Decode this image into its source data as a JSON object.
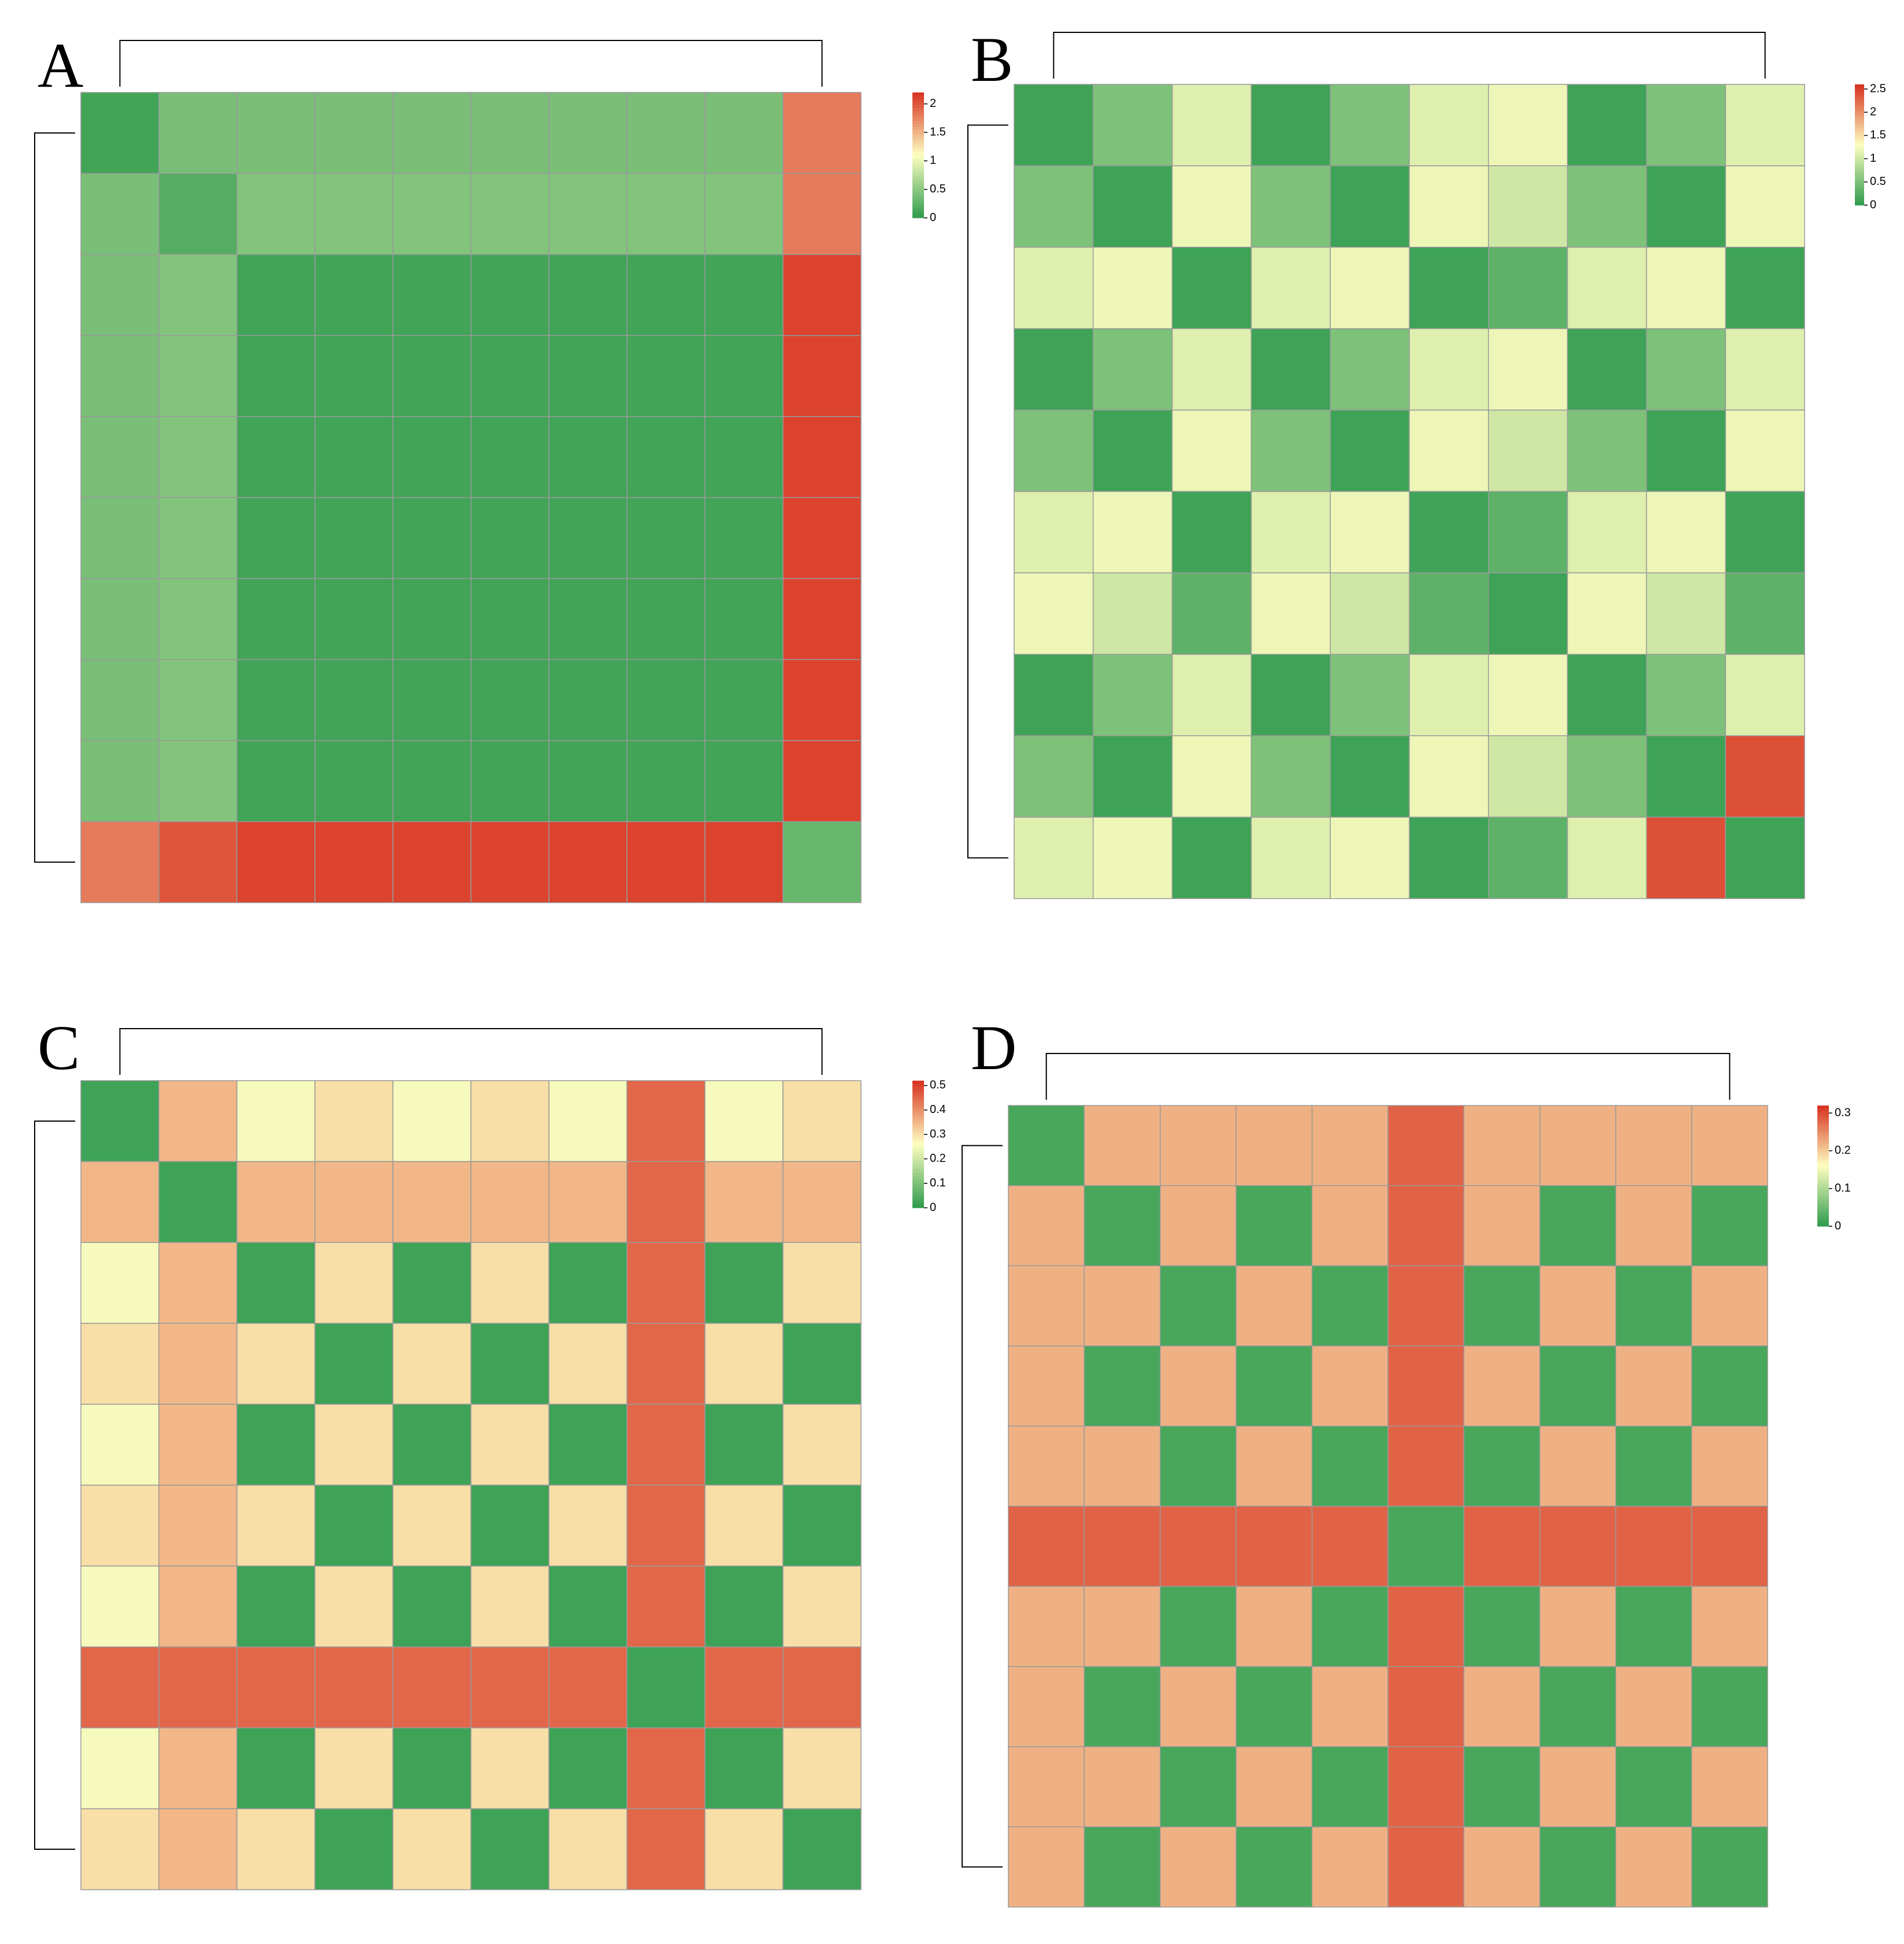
{
  "chart_data": [
    {
      "type": "heatmap",
      "panel": "A",
      "colors": [
        "#2e9b4d",
        "#fefec0",
        "#d7301f"
      ],
      "zlim": [
        0,
        2.2
      ],
      "zticks": [
        0,
        0.5,
        1,
        1.5,
        2
      ],
      "values": [
        [
          0.1,
          0.4,
          0.4,
          0.4,
          0.4,
          0.4,
          0.4,
          0.4,
          0.4,
          1.8
        ],
        [
          0.4,
          0.2,
          0.45,
          0.45,
          0.45,
          0.45,
          0.45,
          0.45,
          0.45,
          1.8
        ],
        [
          0.4,
          0.45,
          0.1,
          0.1,
          0.1,
          0.1,
          0.1,
          0.1,
          0.1,
          2.1
        ],
        [
          0.4,
          0.45,
          0.1,
          0.1,
          0.1,
          0.1,
          0.1,
          0.1,
          0.1,
          2.1
        ],
        [
          0.4,
          0.45,
          0.1,
          0.1,
          0.1,
          0.1,
          0.1,
          0.1,
          0.1,
          2.1
        ],
        [
          0.4,
          0.45,
          0.1,
          0.1,
          0.1,
          0.1,
          0.1,
          0.1,
          0.1,
          2.1
        ],
        [
          0.4,
          0.45,
          0.1,
          0.1,
          0.1,
          0.1,
          0.1,
          0.1,
          0.1,
          2.1
        ],
        [
          0.4,
          0.45,
          0.1,
          0.1,
          0.1,
          0.1,
          0.1,
          0.1,
          0.1,
          2.1
        ],
        [
          0.4,
          0.45,
          0.1,
          0.1,
          0.1,
          0.1,
          0.1,
          0.1,
          0.1,
          2.1
        ],
        [
          1.8,
          2,
          2.1,
          2.1,
          2.1,
          2.1,
          2.1,
          2.1,
          2.1,
          0.3
        ]
      ]
    },
    {
      "type": "heatmap",
      "panel": "B",
      "colors": [
        "#2e9b4d",
        "#fefec0",
        "#d7301f"
      ],
      "zlim": [
        0,
        2.6
      ],
      "zticks": [
        0,
        0.5,
        1,
        1.5,
        2,
        2.5
      ],
      "values": [
        [
          0.1,
          0.5,
          1.1,
          0.1,
          0.5,
          1.1,
          1.2,
          0.1,
          0.5,
          1.1
        ],
        [
          0.5,
          0.1,
          1.2,
          0.5,
          0.1,
          1.2,
          1.0,
          0.5,
          0.1,
          1.2
        ],
        [
          1.1,
          1.2,
          0.1,
          1.1,
          1.2,
          0.1,
          0.3,
          1.1,
          1.2,
          0.1
        ],
        [
          0.1,
          0.5,
          1.1,
          0.1,
          0.5,
          1.1,
          1.2,
          0.1,
          0.5,
          1.1
        ],
        [
          0.5,
          0.1,
          1.2,
          0.5,
          0.1,
          1.2,
          1.0,
          0.5,
          0.1,
          1.2
        ],
        [
          1.1,
          1.2,
          0.1,
          1.1,
          1.2,
          0.1,
          0.3,
          1.1,
          1.2,
          0.1
        ],
        [
          1.2,
          1.0,
          0.3,
          1.2,
          1.0,
          0.3,
          0.1,
          1.2,
          1.0,
          0.3
        ],
        [
          0.1,
          0.5,
          1.1,
          0.1,
          0.5,
          1.1,
          1.2,
          0.1,
          0.5,
          1.1
        ],
        [
          0.5,
          0.1,
          1.2,
          0.5,
          0.1,
          1.2,
          1.0,
          0.5,
          0.1,
          2.4
        ],
        [
          1.1,
          1.2,
          0.1,
          1.1,
          1.2,
          0.1,
          0.3,
          1.1,
          2.4,
          0.1
        ]
      ]
    },
    {
      "type": "heatmap",
      "panel": "C",
      "colors": [
        "#2e9b4d",
        "#fefec0",
        "#d7301f"
      ],
      "zlim": [
        0,
        0.52
      ],
      "zticks": [
        0,
        0.1,
        0.2,
        0.3,
        0.4,
        0.5
      ],
      "values": [
        [
          0.02,
          0.35,
          0.25,
          0.3,
          0.25,
          0.3,
          0.25,
          0.45,
          0.25,
          0.3
        ],
        [
          0.35,
          0.02,
          0.35,
          0.35,
          0.35,
          0.35,
          0.35,
          0.45,
          0.35,
          0.35
        ],
        [
          0.25,
          0.35,
          0.02,
          0.3,
          0.02,
          0.3,
          0.02,
          0.45,
          0.02,
          0.3
        ],
        [
          0.3,
          0.35,
          0.3,
          0.02,
          0.3,
          0.02,
          0.3,
          0.45,
          0.3,
          0.02
        ],
        [
          0.25,
          0.35,
          0.02,
          0.3,
          0.02,
          0.3,
          0.02,
          0.45,
          0.02,
          0.3
        ],
        [
          0.3,
          0.35,
          0.3,
          0.02,
          0.3,
          0.02,
          0.3,
          0.45,
          0.3,
          0.02
        ],
        [
          0.25,
          0.35,
          0.02,
          0.3,
          0.02,
          0.3,
          0.02,
          0.45,
          0.02,
          0.3
        ],
        [
          0.45,
          0.45,
          0.45,
          0.45,
          0.45,
          0.45,
          0.45,
          0.02,
          0.45,
          0.45
        ],
        [
          0.25,
          0.35,
          0.02,
          0.3,
          0.02,
          0.3,
          0.02,
          0.45,
          0.02,
          0.3
        ],
        [
          0.3,
          0.35,
          0.3,
          0.02,
          0.3,
          0.02,
          0.3,
          0.45,
          0.3,
          0.02
        ]
      ]
    },
    {
      "type": "heatmap",
      "panel": "D",
      "colors": [
        "#2e9b4d",
        "#fefec0",
        "#d7301f"
      ],
      "zlim": [
        0,
        0.32
      ],
      "zticks": [
        0,
        0.1,
        0.2,
        0.3
      ],
      "values": [
        [
          0.02,
          0.22,
          0.22,
          0.22,
          0.22,
          0.28,
          0.22,
          0.22,
          0.22,
          0.22
        ],
        [
          0.22,
          0.02,
          0.22,
          0.02,
          0.22,
          0.28,
          0.22,
          0.02,
          0.22,
          0.02
        ],
        [
          0.22,
          0.22,
          0.02,
          0.22,
          0.02,
          0.28,
          0.02,
          0.22,
          0.02,
          0.22
        ],
        [
          0.22,
          0.02,
          0.22,
          0.02,
          0.22,
          0.28,
          0.22,
          0.02,
          0.22,
          0.02
        ],
        [
          0.22,
          0.22,
          0.02,
          0.22,
          0.02,
          0.28,
          0.02,
          0.22,
          0.02,
          0.22
        ],
        [
          0.28,
          0.28,
          0.28,
          0.28,
          0.28,
          0.02,
          0.28,
          0.28,
          0.28,
          0.28
        ],
        [
          0.22,
          0.22,
          0.02,
          0.22,
          0.02,
          0.28,
          0.02,
          0.22,
          0.02,
          0.22
        ],
        [
          0.22,
          0.02,
          0.22,
          0.02,
          0.22,
          0.28,
          0.22,
          0.02,
          0.22,
          0.02
        ],
        [
          0.22,
          0.22,
          0.02,
          0.22,
          0.02,
          0.28,
          0.02,
          0.22,
          0.02,
          0.22
        ],
        [
          0.22,
          0.02,
          0.22,
          0.02,
          0.22,
          0.28,
          0.22,
          0.02,
          0.22,
          0.02
        ]
      ]
    }
  ]
}
